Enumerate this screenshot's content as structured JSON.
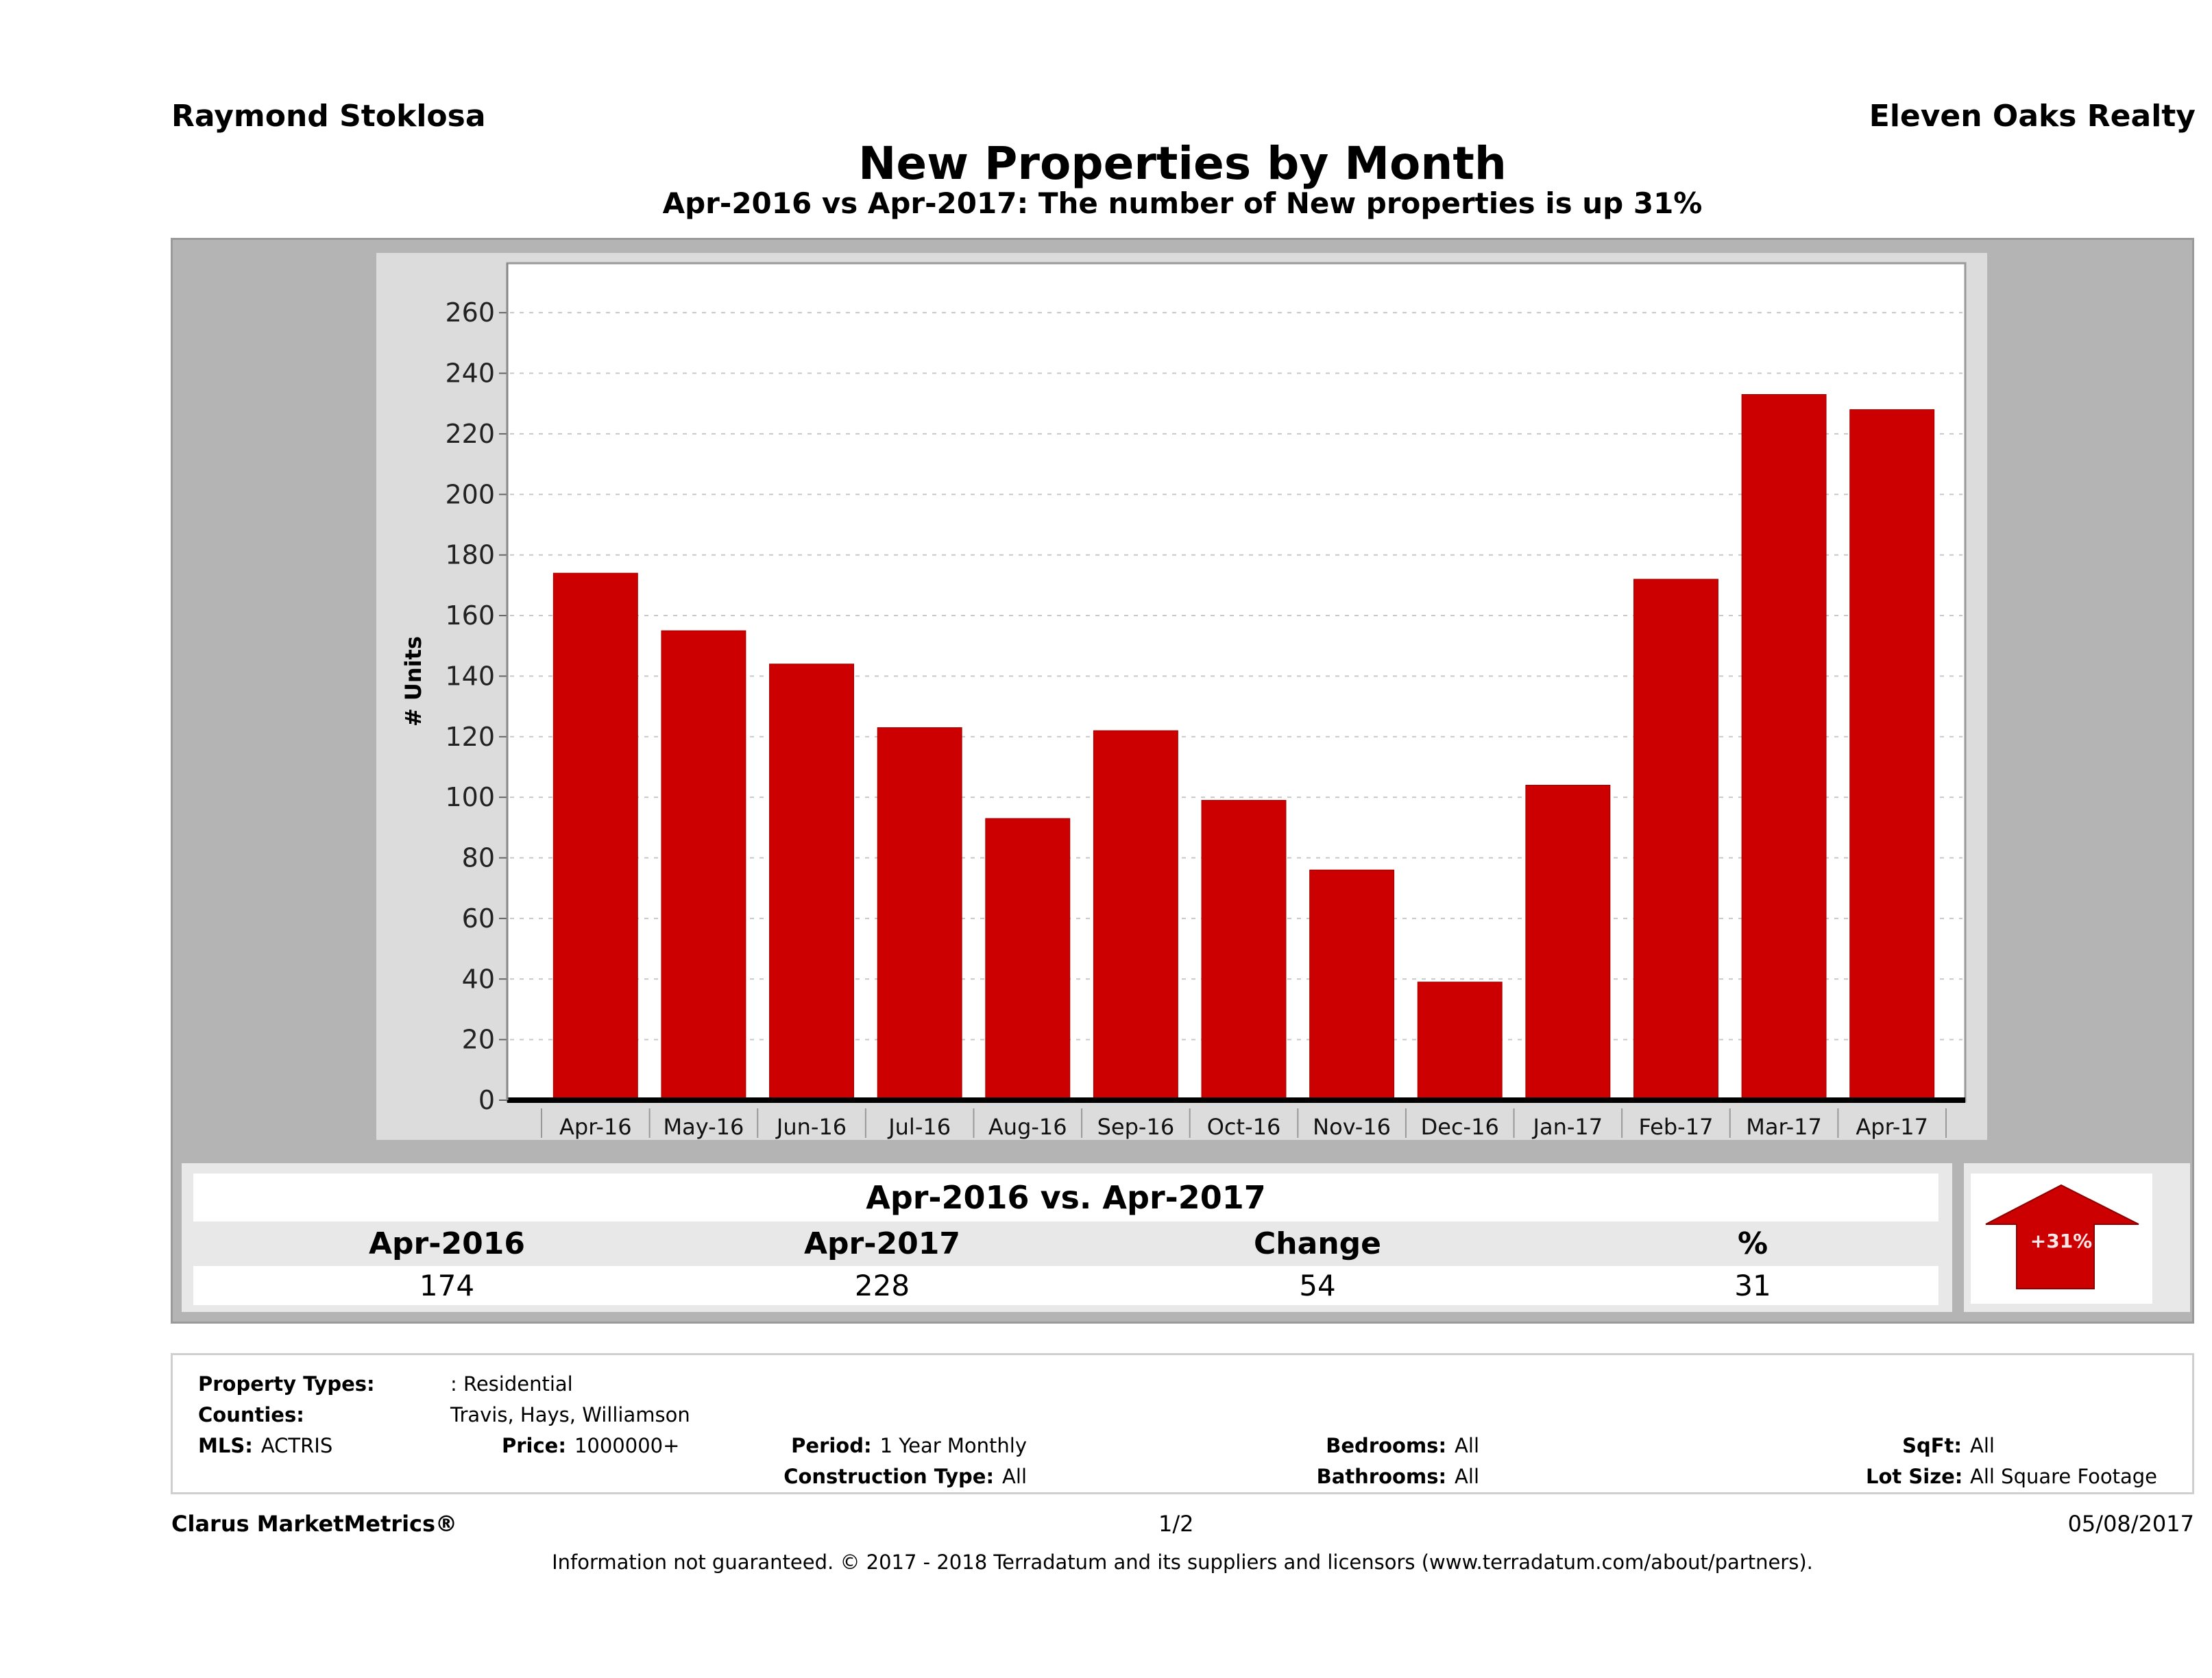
{
  "header": {
    "agent_name": "Raymond Stoklosa",
    "company": "Eleven Oaks Realty",
    "title": "New Properties by Month",
    "subtitle": "Apr-2016 vs Apr-2017: The number of New  properties is up 31%"
  },
  "chart_data": {
    "type": "bar",
    "title": "New Properties by Month",
    "xlabel": "",
    "ylabel": "# Units",
    "ylim": [
      0,
      270
    ],
    "yticks": [
      0,
      20,
      40,
      60,
      80,
      100,
      120,
      140,
      160,
      180,
      200,
      220,
      240,
      260
    ],
    "grid": true,
    "categories": [
      "Apr-16",
      "May-16",
      "Jun-16",
      "Jul-16",
      "Aug-16",
      "Sep-16",
      "Oct-16",
      "Nov-16",
      "Dec-16",
      "Jan-17",
      "Feb-17",
      "Mar-17",
      "Apr-17"
    ],
    "values": [
      174,
      155,
      144,
      123,
      93,
      122,
      99,
      76,
      39,
      104,
      172,
      233,
      228
    ],
    "bar_color": "#cc0000"
  },
  "summary": {
    "title": "Apr-2016 vs. Apr-2017",
    "headers": [
      "Apr-2016",
      "Apr-2017",
      "Change",
      "%"
    ],
    "values": [
      "174",
      "228",
      "54",
      "31"
    ],
    "badge": "+31%",
    "badge_direction": "up",
    "badge_color": "#cc0000"
  },
  "criteria": {
    "property_types_label": "Property Types:",
    "property_types_value": ": Residential",
    "counties_label": "Counties:",
    "counties_value": "Travis, Hays, Williamson",
    "mls_label": "MLS:",
    "mls_value": "ACTRIS",
    "price_label": "Price:",
    "price_value": "1000000+",
    "period_label": "Period:",
    "period_value": "1 Year Monthly",
    "construction_label": "Construction Type:",
    "construction_value": "All",
    "bedrooms_label": "Bedrooms:",
    "bedrooms_value": "All",
    "bathrooms_label": "Bathrooms:",
    "bathrooms_value": "All",
    "sqft_label": "SqFt:",
    "sqft_value": "All",
    "lot_size_label": "Lot Size:",
    "lot_size_value": "All Square Footage"
  },
  "footer": {
    "brand": "Clarus MarketMetrics®",
    "page": "1/2",
    "date": "05/08/2017",
    "disclaimer": "Information not guaranteed. © 2017 - 2018 Terradatum and its suppliers and licensors (www.terradatum.com/about/partners)."
  }
}
